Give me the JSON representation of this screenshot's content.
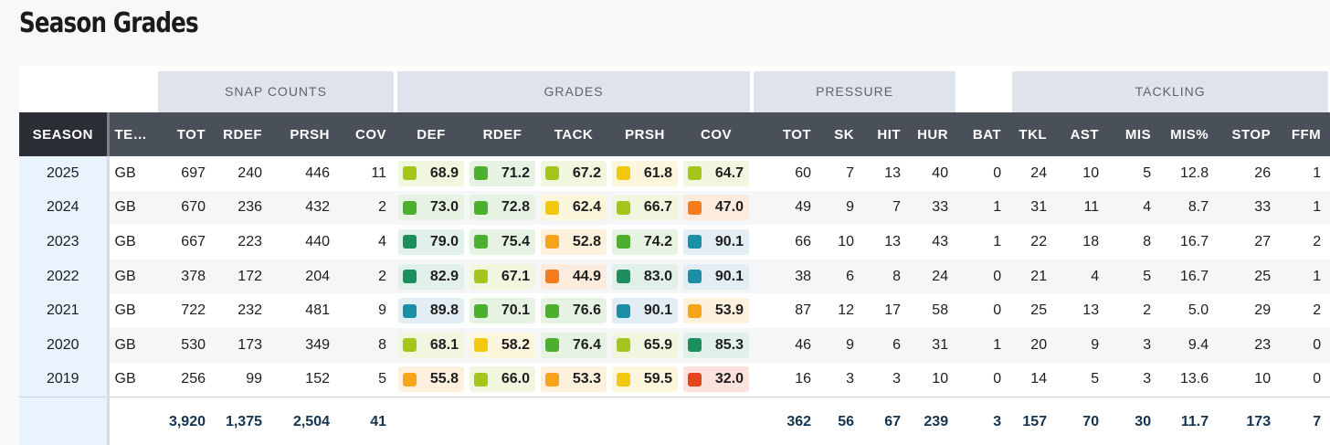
{
  "title": "Season Grades",
  "groups": {
    "snap_counts": "SNAP COUNTS",
    "grades": "GRADES",
    "pressure": "PRESSURE",
    "tackling": "TACKLING"
  },
  "headers": {
    "season": "SEASON",
    "team": "TEAM",
    "snap_tot": "TOT",
    "snap_rdef": "RDEF",
    "snap_prsh": "PRSH",
    "snap_cov": "COV",
    "g_def": "DEF",
    "g_rdef": "RDEF",
    "g_tack": "TACK",
    "g_prsh": "PRSH",
    "g_cov": "COV",
    "p_tot": "TOT",
    "p_sk": "SK",
    "p_hit": "HIT",
    "p_hur": "HUR",
    "p_bat": "BAT",
    "t_tkl": "TKL",
    "t_ast": "AST",
    "t_mis": "MIS",
    "t_mis_pct": "MIS%",
    "t_stop": "STOP",
    "t_ffm": "FFM"
  },
  "grade_colors": {
    "elite": {
      "swatch": "#1a8fa6",
      "bg": "#e2eef4"
    },
    "high": {
      "swatch": "#1b8f5e",
      "bg": "#e2f0ea"
    },
    "good": {
      "swatch": "#4caf2d",
      "bg": "#e6f3e3"
    },
    "above": {
      "swatch": "#a4c51b",
      "bg": "#f1f6df"
    },
    "average": {
      "swatch": "#f2c80f",
      "bg": "#fcf6dc"
    },
    "below": {
      "swatch": "#f6a51a",
      "bg": "#fdf1de"
    },
    "poor": {
      "swatch": "#f47c1e",
      "bg": "#fdebdd"
    },
    "bad": {
      "swatch": "#e3461f",
      "bg": "#fbe2dd"
    }
  },
  "rows": [
    {
      "season": "2025",
      "team": "GB",
      "snap_tot": "697",
      "snap_rdef": "240",
      "snap_prsh": "446",
      "snap_cov": "11",
      "grades": [
        {
          "value": "68.9",
          "tier": "above"
        },
        {
          "value": "71.2",
          "tier": "good"
        },
        {
          "value": "67.2",
          "tier": "above"
        },
        {
          "value": "61.8",
          "tier": "average"
        },
        {
          "value": "64.7",
          "tier": "above"
        }
      ],
      "p_tot": "60",
      "p_sk": "7",
      "p_hit": "13",
      "p_hur": "40",
      "p_bat": "0",
      "t_tkl": "24",
      "t_ast": "10",
      "t_mis": "5",
      "t_mis_pct": "12.8",
      "t_stop": "26",
      "t_ffm": "1"
    },
    {
      "season": "2024",
      "team": "GB",
      "snap_tot": "670",
      "snap_rdef": "236",
      "snap_prsh": "432",
      "snap_cov": "2",
      "grades": [
        {
          "value": "73.0",
          "tier": "good"
        },
        {
          "value": "72.8",
          "tier": "good"
        },
        {
          "value": "62.4",
          "tier": "average"
        },
        {
          "value": "66.7",
          "tier": "above"
        },
        {
          "value": "47.0",
          "tier": "poor"
        }
      ],
      "p_tot": "49",
      "p_sk": "9",
      "p_hit": "7",
      "p_hur": "33",
      "p_bat": "1",
      "t_tkl": "31",
      "t_ast": "11",
      "t_mis": "4",
      "t_mis_pct": "8.7",
      "t_stop": "33",
      "t_ffm": "1"
    },
    {
      "season": "2023",
      "team": "GB",
      "snap_tot": "667",
      "snap_rdef": "223",
      "snap_prsh": "440",
      "snap_cov": "4",
      "grades": [
        {
          "value": "79.0",
          "tier": "high"
        },
        {
          "value": "75.4",
          "tier": "good"
        },
        {
          "value": "52.8",
          "tier": "below"
        },
        {
          "value": "74.2",
          "tier": "good"
        },
        {
          "value": "90.1",
          "tier": "elite"
        }
      ],
      "p_tot": "66",
      "p_sk": "10",
      "p_hit": "13",
      "p_hur": "43",
      "p_bat": "1",
      "t_tkl": "22",
      "t_ast": "18",
      "t_mis": "8",
      "t_mis_pct": "16.7",
      "t_stop": "27",
      "t_ffm": "2"
    },
    {
      "season": "2022",
      "team": "GB",
      "snap_tot": "378",
      "snap_rdef": "172",
      "snap_prsh": "204",
      "snap_cov": "2",
      "grades": [
        {
          "value": "82.9",
          "tier": "high"
        },
        {
          "value": "67.1",
          "tier": "above"
        },
        {
          "value": "44.9",
          "tier": "poor"
        },
        {
          "value": "83.0",
          "tier": "high"
        },
        {
          "value": "90.1",
          "tier": "elite"
        }
      ],
      "p_tot": "38",
      "p_sk": "6",
      "p_hit": "8",
      "p_hur": "24",
      "p_bat": "0",
      "t_tkl": "21",
      "t_ast": "4",
      "t_mis": "5",
      "t_mis_pct": "16.7",
      "t_stop": "25",
      "t_ffm": "1"
    },
    {
      "season": "2021",
      "team": "GB",
      "snap_tot": "722",
      "snap_rdef": "232",
      "snap_prsh": "481",
      "snap_cov": "9",
      "grades": [
        {
          "value": "89.8",
          "tier": "elite"
        },
        {
          "value": "70.1",
          "tier": "good"
        },
        {
          "value": "76.6",
          "tier": "good"
        },
        {
          "value": "90.1",
          "tier": "elite"
        },
        {
          "value": "53.9",
          "tier": "below"
        }
      ],
      "p_tot": "87",
      "p_sk": "12",
      "p_hit": "17",
      "p_hur": "58",
      "p_bat": "0",
      "t_tkl": "25",
      "t_ast": "13",
      "t_mis": "2",
      "t_mis_pct": "5.0",
      "t_stop": "29",
      "t_ffm": "2"
    },
    {
      "season": "2020",
      "team": "GB",
      "snap_tot": "530",
      "snap_rdef": "173",
      "snap_prsh": "349",
      "snap_cov": "8",
      "grades": [
        {
          "value": "68.1",
          "tier": "above"
        },
        {
          "value": "58.2",
          "tier": "average"
        },
        {
          "value": "76.4",
          "tier": "good"
        },
        {
          "value": "65.9",
          "tier": "above"
        },
        {
          "value": "85.3",
          "tier": "high"
        }
      ],
      "p_tot": "46",
      "p_sk": "9",
      "p_hit": "6",
      "p_hur": "31",
      "p_bat": "1",
      "t_tkl": "20",
      "t_ast": "9",
      "t_mis": "3",
      "t_mis_pct": "9.4",
      "t_stop": "23",
      "t_ffm": "0"
    },
    {
      "season": "2019",
      "team": "GB",
      "snap_tot": "256",
      "snap_rdef": "99",
      "snap_prsh": "152",
      "snap_cov": "5",
      "grades": [
        {
          "value": "55.8",
          "tier": "below"
        },
        {
          "value": "66.0",
          "tier": "above"
        },
        {
          "value": "53.3",
          "tier": "below"
        },
        {
          "value": "59.5",
          "tier": "average"
        },
        {
          "value": "32.0",
          "tier": "bad"
        }
      ],
      "p_tot": "16",
      "p_sk": "3",
      "p_hit": "3",
      "p_hur": "10",
      "p_bat": "0",
      "t_tkl": "14",
      "t_ast": "5",
      "t_mis": "3",
      "t_mis_pct": "13.6",
      "t_stop": "10",
      "t_ffm": "0"
    }
  ],
  "totals": {
    "snap_tot": "3,920",
    "snap_rdef": "1,375",
    "snap_prsh": "2,504",
    "snap_cov": "41",
    "p_tot": "362",
    "p_sk": "56",
    "p_hit": "67",
    "p_hur": "239",
    "p_bat": "3",
    "t_tkl": "157",
    "t_ast": "70",
    "t_mis": "30",
    "t_mis_pct": "11.7",
    "t_stop": "173",
    "t_ffm": "7"
  }
}
